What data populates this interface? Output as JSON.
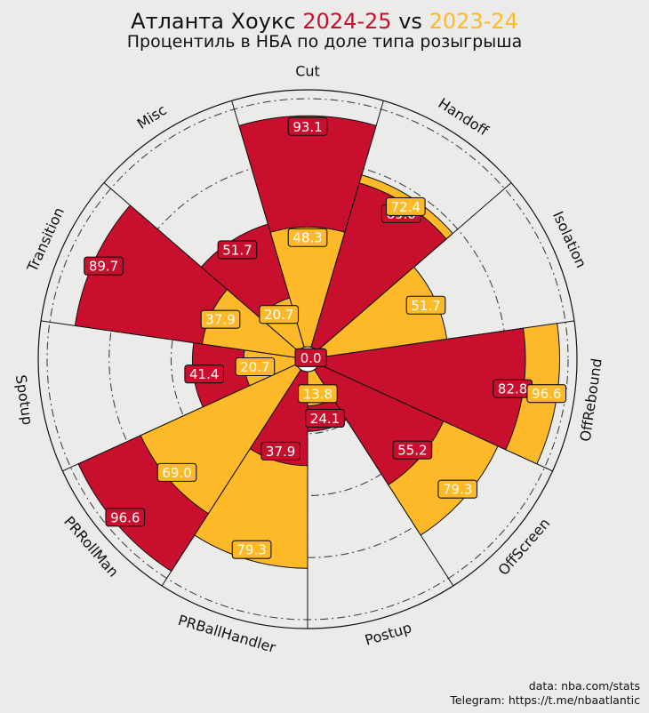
{
  "header": {
    "team": "Атланта Хоукс",
    "season_a": "2024-25",
    "vs": "vs",
    "season_b": "2023-24",
    "subtitle": "Процентиль в НБА по доле типа розыгрыша"
  },
  "credits": {
    "line1": "data: nba.com/stats",
    "line2": "Telegram: https://t.me/nbaatlantic"
  },
  "colors": {
    "season_2024_25": "#c8102e",
    "season_2023_24": "#fdb927",
    "background": "#ebebe9"
  },
  "chart_data": {
    "type": "polar-bar",
    "title": "Атланта Хоукс 2024-25 vs 2023-24",
    "subtitle": "Процентиль в НБА по доле типа розыгрыша",
    "rlim": [
      0,
      100
    ],
    "categories": [
      "Cut",
      "Handoff",
      "Isolation",
      "OffRebound",
      "OffScreen",
      "Postup",
      "PRBallHandler",
      "PRRollMan",
      "Spotup",
      "Transition",
      "Misc"
    ],
    "series": [
      {
        "name": "2024-25",
        "values": [
          93.1,
          69.0,
          0.0,
          82.8,
          55.2,
          24.1,
          37.9,
          96.6,
          41.4,
          89.7,
          51.7
        ]
      },
      {
        "name": "2023-24",
        "values": [
          48.3,
          72.4,
          51.7,
          96.6,
          79.3,
          13.8,
          79.3,
          69.0,
          20.7,
          37.9,
          20.7
        ]
      }
    ],
    "labels_2024_25": [
      "93.1",
      "69.0",
      "0.0",
      "82.8",
      "55.2",
      "24.1",
      "37.9",
      "96.6",
      "41.4",
      "89.7",
      "51.7"
    ],
    "labels_2023_24": [
      "48.3",
      "72.4",
      "51.7",
      "96.6",
      "79.3",
      "13.8",
      "79.3",
      "69.0",
      "20.7",
      "37.9",
      "20.7"
    ],
    "grid": true
  }
}
